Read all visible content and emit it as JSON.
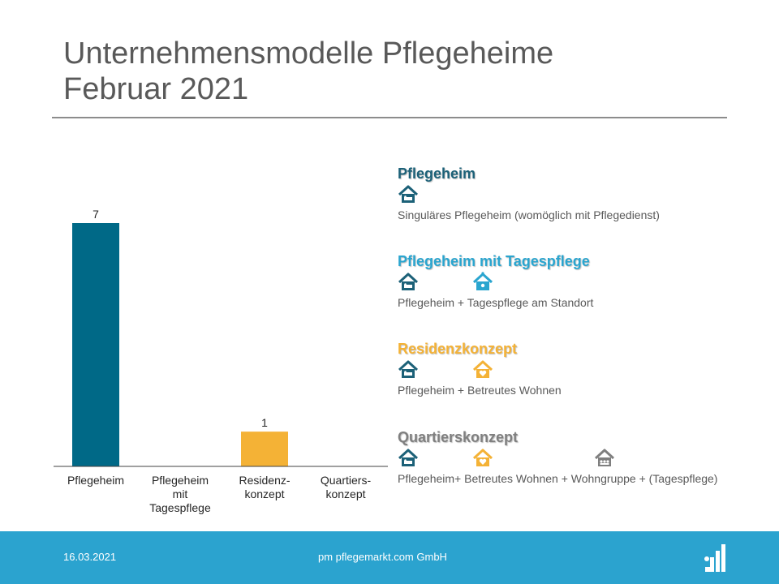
{
  "title_line1": "Unternehmensmodelle Pflegeheime",
  "title_line2": "Februar 2021",
  "chart_data": {
    "type": "bar",
    "categories": [
      "Pflegeheim",
      "Pflegeheim\nmit\nTagespflege",
      "Residenz-\nkonzept",
      "Quartiers-\nkonzept"
    ],
    "values": [
      7,
      0,
      1,
      0
    ],
    "data_labels": [
      "7",
      "",
      "1",
      ""
    ],
    "bar_colors": [
      "#006987",
      "#2ba3cf",
      "#f4b236",
      "#7f7f7f"
    ],
    "ylim": [
      0,
      8
    ],
    "xlabel": "",
    "ylabel": "",
    "title": "",
    "grid": false,
    "legend": "right"
  },
  "legend": [
    {
      "title": "Pflegeheim",
      "color": "#1c6178",
      "icons": [
        "pflegeheim-icon"
      ],
      "description": "Singuläres Pflegeheim (womöglich mit Pflegedienst)"
    },
    {
      "title": "Pflegeheim mit Tagespflege",
      "color": "#2aa5cf",
      "icons": [
        "pflegeheim-icon",
        "tagespflege-icon"
      ],
      "description": "Pflegeheim + Tagespflege am Standort"
    },
    {
      "title": "Residenzkonzept",
      "color": "#f4b236",
      "icons": [
        "pflegeheim-icon",
        "betreutes-wohnen-icon"
      ],
      "description": "Pflegeheim + Betreutes Wohnen"
    },
    {
      "title": "Quartierskonzept",
      "color": "#7f7f7f",
      "icons": [
        "pflegeheim-icon",
        "betreutes-wohnen-icon",
        "wohngruppe-icon"
      ],
      "description": "Pflegeheim+ Betreutes Wohnen + Wohngruppe + (Tagespflege)"
    }
  ],
  "icon_colors": {
    "pflegeheim-icon": "#1c6178",
    "tagespflege-icon": "#2aa5cf",
    "betreutes-wohnen-icon": "#f4b236",
    "wohngruppe-icon": "#7f7f7f"
  },
  "footer": {
    "date": "16.03.2021",
    "company": "pm pflegemarkt.com GmbH",
    "background": "#2ba3cf"
  }
}
